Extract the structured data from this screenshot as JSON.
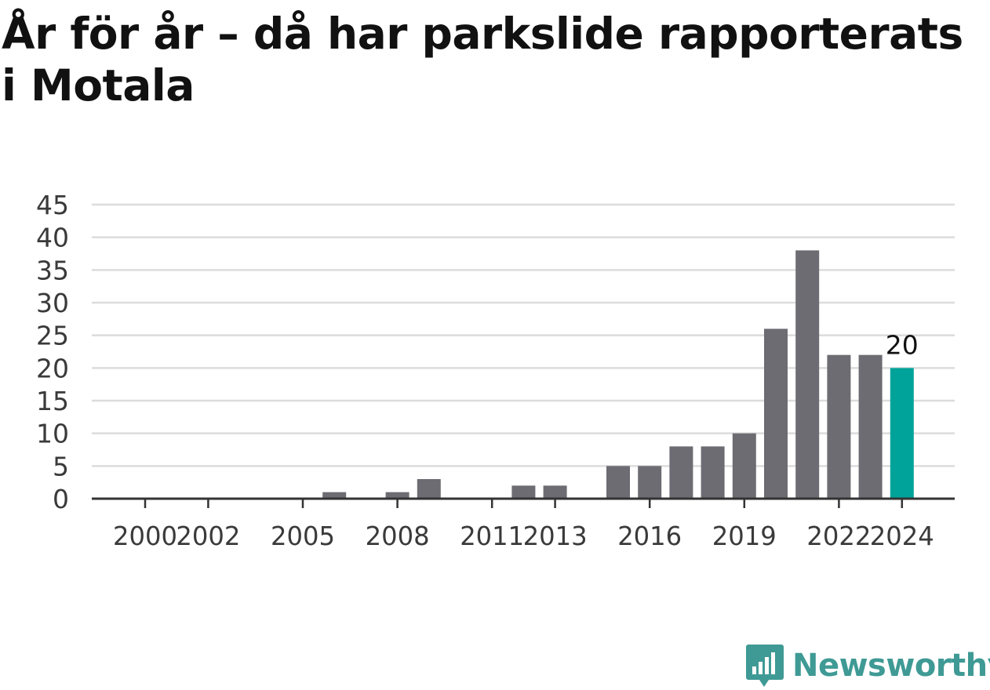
{
  "title": "År för år – då har parkslide rapporterats i Motala",
  "brand": {
    "name": "Newsworthy",
    "logo_icon": "newsworthy-logo-icon"
  },
  "colors": {
    "bar": "#6d6c72",
    "highlight": "#00a39a",
    "grid": "#dcdcdc",
    "axis": "#333333"
  },
  "chart_data": {
    "type": "bar",
    "categories": [
      "2000",
      "2001",
      "2002",
      "2003",
      "2004",
      "2005",
      "2006",
      "2007",
      "2008",
      "2009",
      "2010",
      "2011",
      "2012",
      "2013",
      "2014",
      "2015",
      "2016",
      "2017",
      "2018",
      "2019",
      "2020",
      "2021",
      "2022",
      "2023",
      "2024"
    ],
    "values": [
      0,
      0,
      0,
      0,
      0,
      0,
      1,
      0,
      1,
      3,
      0,
      0,
      2,
      2,
      0,
      5,
      5,
      8,
      8,
      10,
      26,
      38,
      22,
      22,
      20
    ],
    "highlight_index": 24,
    "data_labels": [
      {
        "index": 24,
        "text": "20"
      }
    ],
    "x_tick_labels": [
      "2000",
      "2002",
      "2005",
      "2008",
      "2011",
      "2013",
      "2016",
      "2019",
      "2022",
      "2024"
    ],
    "y_ticks": [
      0,
      5,
      10,
      15,
      20,
      25,
      30,
      35,
      40,
      45
    ],
    "ylim": [
      0,
      45
    ],
    "grid": true,
    "xlabel": "",
    "ylabel": ""
  }
}
